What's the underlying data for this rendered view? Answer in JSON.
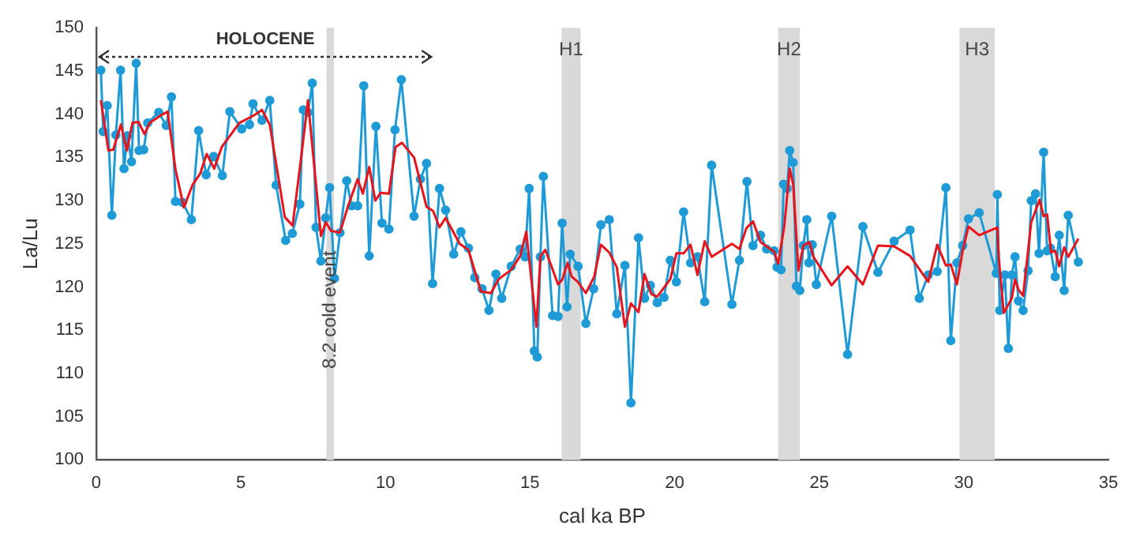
{
  "chart_data": {
    "type": "line",
    "xlabel": "cal ka BP",
    "ylabel": "La/Lu",
    "xlim": [
      0,
      35
    ],
    "xticks": [
      0,
      5,
      10,
      15,
      20,
      25,
      30,
      35
    ],
    "ylim": [
      100,
      150
    ],
    "yticks": [
      100,
      105,
      110,
      115,
      120,
      125,
      130,
      135,
      140,
      145,
      150
    ],
    "grid": false,
    "legend": false,
    "annotations": [
      "HOLOCENE"
    ],
    "bands": [
      {
        "axis": "x",
        "from": 7.96,
        "to": 8.22,
        "label": "8.2 cold event",
        "color": "#d9d9d9"
      },
      {
        "axis": "x",
        "from": 16.09,
        "to": 16.75,
        "label": "H1",
        "color": "#d9d9d9"
      },
      {
        "axis": "x",
        "from": 23.58,
        "to": 24.33,
        "label": "H2",
        "color": "#d9d9d9"
      },
      {
        "axis": "x",
        "from": 29.85,
        "to": 31.07,
        "label": "H3",
        "color": "#d9d9d9"
      }
    ],
    "series": [
      {
        "color": "#1e9bd7",
        "marker": "circle",
        "line_style": "solid",
        "x": [
          0.16,
          0.24,
          0.38,
          0.54,
          0.68,
          0.84,
          0.96,
          1.08,
          1.22,
          1.38,
          1.48,
          1.64,
          1.78,
          2.16,
          2.42,
          2.6,
          2.74,
          2.98,
          3.29,
          3.54,
          3.8,
          4.06,
          4.36,
          4.62,
          5.03,
          5.3,
          5.42,
          5.73,
          6.0,
          6.22,
          6.55,
          6.78,
          7.04,
          7.16,
          7.32,
          7.47,
          7.6,
          7.77,
          7.93,
          8.07,
          8.24,
          8.43,
          8.66,
          8.83,
          9.04,
          9.25,
          9.44,
          9.67,
          9.88,
          10.12,
          10.33,
          10.55,
          10.99,
          11.21,
          11.42,
          11.63,
          11.87,
          12.08,
          12.36,
          12.61,
          12.87,
          13.09,
          13.34,
          13.58,
          13.82,
          14.02,
          14.35,
          14.66,
          14.83,
          14.97,
          15.15,
          15.25,
          15.36,
          15.46,
          15.78,
          15.97,
          16.11,
          16.28,
          16.39,
          16.66,
          16.93,
          17.2,
          17.45,
          17.74,
          18.0,
          18.28,
          18.49,
          18.75,
          18.96,
          19.16,
          19.4,
          19.63,
          19.85,
          20.06,
          20.31,
          20.55,
          20.79,
          21.04,
          21.28,
          21.98,
          22.24,
          22.5,
          22.71,
          22.97,
          23.18,
          23.44,
          23.54,
          23.68,
          23.77,
          23.89,
          23.98,
          24.1,
          24.21,
          24.33,
          24.45,
          24.57,
          24.64,
          24.76,
          24.9,
          25.43,
          25.98,
          26.51,
          27.03,
          27.59,
          28.14,
          28.46,
          28.77,
          29.08,
          29.38,
          29.55,
          29.76,
          29.96,
          30.16,
          30.53,
          31.12,
          31.16,
          31.24,
          31.42,
          31.54,
          31.66,
          31.77,
          31.89,
          32.05,
          32.22,
          32.33,
          32.48,
          32.6,
          32.76,
          32.88,
          32.99,
          33.16,
          33.3,
          33.47,
          33.61,
          33.96
        ],
        "values": [
          145.1,
          138,
          141,
          128.3,
          137.6,
          145.1,
          133.7,
          137.5,
          134.5,
          145.9,
          135.8,
          135.9,
          139,
          140.2,
          138.7,
          142,
          129.9,
          129.8,
          127.8,
          138.1,
          133,
          135.1,
          132.9,
          140.3,
          138.3,
          138.8,
          141.2,
          139.3,
          141.6,
          131.8,
          125.4,
          126.2,
          129.6,
          140.5,
          140.2,
          143.6,
          126.9,
          123,
          128,
          131.5,
          121,
          126.3,
          132.3,
          129.4,
          129.4,
          143.3,
          123.6,
          138.6,
          127.4,
          126.7,
          138.2,
          144,
          128.2,
          132.5,
          134.3,
          120.4,
          131.4,
          128.9,
          123.8,
          126.4,
          124.5,
          121.1,
          119.8,
          117.3,
          121.5,
          118.7,
          122.4,
          124.4,
          123.5,
          131.4,
          112.6,
          111.9,
          123.5,
          132.8,
          116.7,
          116.6,
          127.4,
          117.7,
          123.8,
          122.4,
          115.8,
          119.8,
          127.2,
          127.8,
          116.9,
          122.5,
          106.6,
          125.7,
          118.7,
          120.2,
          118.2,
          118.8,
          123.1,
          120.6,
          128.7,
          122.8,
          123.5,
          118.3,
          134.1,
          118,
          123.1,
          132.2,
          124.8,
          126,
          124.4,
          124.2,
          122.3,
          122,
          131.9,
          131.4,
          135.8,
          134.4,
          120.1,
          119.6,
          124.8,
          127.8,
          122.8,
          124.9,
          120.3,
          128.2,
          112.2,
          127,
          121.7,
          125.3,
          126.6,
          118.7,
          121.4,
          121.8,
          131.5,
          113.8,
          122.8,
          124.8,
          127.9,
          128.6,
          121.6,
          130.7,
          117.3,
          121.4,
          112.9,
          121.4,
          123.5,
          118.4,
          117.3,
          121.9,
          130,
          130.8,
          123.9,
          135.6,
          124.2,
          124.5,
          121.2,
          126,
          119.6,
          128.3,
          122.9
        ]
      },
      {
        "color": "#e8141b",
        "marker": "none",
        "line_style": "solid",
        "x": [
          0.16,
          0.42,
          0.59,
          0.85,
          1.06,
          1.25,
          1.46,
          1.67,
          1.85,
          2.25,
          2.47,
          2.74,
          3.03,
          3.34,
          3.59,
          3.82,
          4.08,
          4.34,
          4.95,
          5.47,
          5.73,
          6.0,
          6.52,
          6.79,
          7.13,
          7.32,
          7.77,
          7.94,
          8.12,
          8.43,
          8.69,
          9.04,
          9.22,
          9.44,
          9.65,
          9.83,
          10.12,
          10.35,
          10.57,
          10.99,
          11.42,
          11.65,
          11.87,
          12.08,
          12.57,
          12.87,
          13.3,
          13.65,
          13.91,
          14.35,
          14.66,
          14.87,
          15.22,
          15.36,
          15.53,
          15.74,
          15.97,
          16.12,
          16.3,
          16.44,
          16.65,
          16.93,
          17.22,
          17.45,
          17.74,
          18.0,
          18.28,
          18.49,
          18.75,
          18.96,
          19.19,
          19.4,
          19.85,
          20.06,
          20.31,
          20.55,
          20.79,
          21.04,
          21.28,
          21.98,
          22.24,
          22.48,
          22.71,
          22.97,
          23.44,
          23.58,
          23.79,
          23.98,
          24.1,
          24.28,
          24.45,
          24.66,
          24.8,
          25.43,
          25.98,
          26.51,
          27.03,
          27.59,
          28.14,
          28.77,
          29.08,
          29.38,
          29.55,
          29.76,
          29.96,
          30.16,
          30.53,
          31.16,
          31.21,
          31.38,
          31.66,
          31.77,
          31.89,
          32.05,
          32.33,
          32.62,
          32.76,
          32.88,
          33.02,
          33.16,
          33.3,
          33.47,
          33.61,
          33.96
        ],
        "values": [
          141.6,
          135.8,
          135.9,
          138.8,
          135.8,
          139,
          139.1,
          137.7,
          139,
          139.9,
          140.3,
          133.6,
          129.2,
          131.9,
          133.1,
          135.4,
          133.7,
          136.2,
          139,
          139.9,
          140.5,
          138.8,
          128.1,
          127.1,
          136.2,
          141.6,
          125.9,
          127.5,
          126.5,
          126.3,
          129.2,
          132.5,
          130.8,
          133.9,
          130,
          130.9,
          130.8,
          136.2,
          136.7,
          135,
          129.3,
          128.8,
          126.9,
          128,
          125,
          124.3,
          119.5,
          119.3,
          120.9,
          122,
          123.6,
          126.4,
          115.4,
          123.6,
          124.3,
          122.4,
          120.3,
          120.9,
          122.8,
          121.2,
          120.6,
          119.3,
          121.2,
          124.9,
          124,
          122.3,
          115.4,
          118.1,
          117.1,
          121.5,
          119.2,
          118.9,
          120.9,
          123.9,
          123.9,
          124.9,
          121.4,
          125.3,
          123.5,
          125,
          124.4,
          126.8,
          127.6,
          125.2,
          124.1,
          122.7,
          127,
          133.7,
          131.9,
          121.9,
          124.8,
          125.2,
          123.5,
          120.2,
          122.4,
          120.3,
          124.8,
          124.7,
          123.6,
          120.6,
          124.9,
          122.5,
          122.6,
          120.3,
          124.2,
          127,
          126,
          126.9,
          123.3,
          117,
          118.7,
          120.9,
          119.7,
          119,
          127.5,
          130.1,
          128.2,
          128.4,
          124,
          124.2,
          122.4,
          124.6,
          123.5,
          125.6
        ]
      }
    ]
  }
}
